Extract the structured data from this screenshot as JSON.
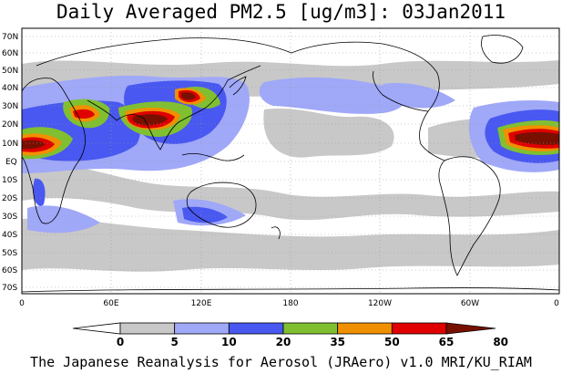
{
  "title": "Daily Averaged PM2.5 [ug/m3]: 03Jan2011",
  "credit": "The Japanese Reanalysis for Aerosol (JRAero) v1.0 MRI/KU_RIAM",
  "lat_labels": [
    "70N",
    "60N",
    "50N",
    "40N",
    "30N",
    "20N",
    "10N",
    "EQ",
    "10S",
    "20S",
    "30S",
    "40S",
    "50S",
    "60S",
    "70S"
  ],
  "lon_labels": [
    "0",
    "60E",
    "120E",
    "180",
    "120W",
    "60W",
    "0"
  ],
  "colorbar": {
    "levels": [
      "0",
      "5",
      "10",
      "20",
      "35",
      "50",
      "65",
      "80"
    ],
    "colors": [
      "#ffffff",
      "#c8c8c8",
      "#a0a8f8",
      "#4858f0",
      "#80c030",
      "#f09000",
      "#e00000",
      "#781000"
    ]
  },
  "legend_scale": {
    "bins": [
      {
        "range": "0-5",
        "color": "#ffffff"
      },
      {
        "range": "5-10",
        "color": "#c8c8c8"
      },
      {
        "range": "10-20",
        "color": "#a0a8f8"
      },
      {
        "range": "20-35",
        "color": "#4858f0"
      },
      {
        "range": "35-50",
        "color": "#80c030"
      },
      {
        "range": "50-65",
        "color": "#f09000"
      },
      {
        "range": "65-80",
        "color": "#e00000"
      },
      {
        "range": ">80",
        "color": "#781000"
      }
    ]
  }
}
